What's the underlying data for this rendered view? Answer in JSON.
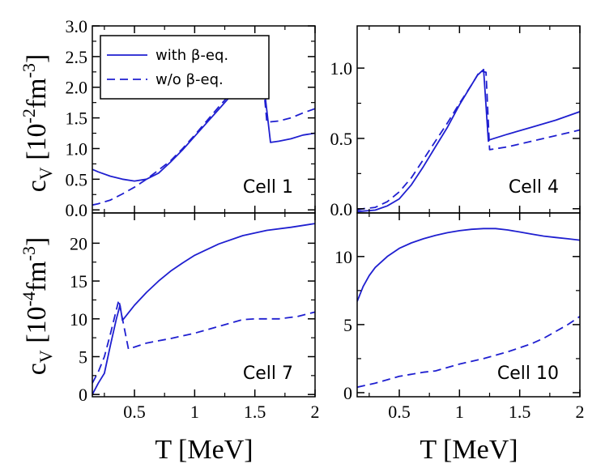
{
  "figure": {
    "x_axis_label": "T [MeV]",
    "y_axis_label_top": {
      "main": "c",
      "sub": "V",
      "open": " [10",
      "exp": "-2",
      "unit": "fm",
      "unit_exp": "-3",
      "close": "]"
    },
    "y_axis_label_bottom": {
      "main": "c",
      "sub": "V",
      "open": " [10",
      "exp": "-4",
      "unit": "fm",
      "unit_exp": "-3",
      "close": "]"
    }
  },
  "colors": {
    "line": "#1f1fd0",
    "axis": "#000000"
  },
  "legend": {
    "items": [
      {
        "label": "with β-eq.",
        "style": "solid"
      },
      {
        "label": "w/o β-eq.",
        "style": "dashed"
      }
    ]
  },
  "chart_data": [
    {
      "type": "line",
      "panel": "top-left",
      "title": "Cell 1",
      "xlabel": "T [MeV]",
      "ylabel": "cV [10^-2 fm^-3]",
      "xlim": [
        0.15,
        2.0
      ],
      "ylim": [
        -0.05,
        3.0
      ],
      "xticks": [
        0.5,
        1,
        1.5,
        2
      ],
      "xtick_labels": [
        "0.5",
        "1",
        "1.5",
        "2"
      ],
      "yticks": [
        0.0,
        0.5,
        1.0,
        1.5,
        2.0,
        2.5,
        3.0
      ],
      "ytick_labels": [
        "0.0",
        "0.5",
        "1.0",
        "1.5",
        "2.0",
        "2.5",
        "3.0"
      ],
      "series": [
        {
          "name": "with β-eq.",
          "style": "solid",
          "x": [
            0.15,
            0.2,
            0.3,
            0.4,
            0.5,
            0.6,
            0.7,
            0.8,
            0.9,
            1.0,
            1.1,
            1.2,
            1.3,
            1.4,
            1.5,
            1.55,
            1.63,
            1.7,
            1.8,
            1.9,
            2.0
          ],
          "values": [
            0.66,
            0.62,
            0.55,
            0.5,
            0.47,
            0.5,
            0.6,
            0.78,
            0.98,
            1.2,
            1.42,
            1.64,
            1.86,
            2.08,
            2.32,
            2.46,
            1.1,
            1.12,
            1.16,
            1.22,
            1.25
          ]
        },
        {
          "name": "w/o β-eq.",
          "style": "dashed",
          "x": [
            0.15,
            0.2,
            0.3,
            0.4,
            0.5,
            0.6,
            0.7,
            0.8,
            0.9,
            1.0,
            1.1,
            1.2,
            1.3,
            1.4,
            1.5,
            1.55,
            1.6,
            1.7,
            1.8,
            1.9,
            2.0
          ],
          "values": [
            0.08,
            0.1,
            0.16,
            0.26,
            0.37,
            0.5,
            0.65,
            0.8,
            1.0,
            1.22,
            1.45,
            1.68,
            1.9,
            2.12,
            2.36,
            2.5,
            1.43,
            1.45,
            1.5,
            1.58,
            1.65
          ]
        }
      ]
    },
    {
      "type": "line",
      "panel": "top-right",
      "title": "Cell 4",
      "xlabel": "T [MeV]",
      "ylabel": "",
      "xlim": [
        0.15,
        2.0
      ],
      "ylim": [
        -0.03,
        1.3
      ],
      "xticks": [
        0.5,
        1,
        1.5,
        2
      ],
      "xtick_labels": [
        "0.5",
        "1",
        "1.5",
        "2"
      ],
      "yticks": [
        0.0,
        0.5,
        1.0
      ],
      "ytick_labels": [
        "0.0",
        "0.5",
        "1.0"
      ],
      "series": [
        {
          "name": "with β-eq.",
          "style": "solid",
          "x": [
            0.15,
            0.3,
            0.4,
            0.5,
            0.6,
            0.7,
            0.8,
            0.9,
            1.0,
            1.1,
            1.15,
            1.2,
            1.24,
            1.25,
            1.4,
            1.6,
            1.8,
            2.0
          ],
          "values": [
            -0.02,
            -0.01,
            0.02,
            0.07,
            0.17,
            0.3,
            0.44,
            0.58,
            0.74,
            0.88,
            0.95,
            0.99,
            0.48,
            0.49,
            0.53,
            0.58,
            0.63,
            0.69
          ]
        },
        {
          "name": "w/o β-eq.",
          "style": "dashed",
          "x": [
            0.15,
            0.2,
            0.3,
            0.4,
            0.5,
            0.6,
            0.7,
            0.8,
            0.9,
            1.0,
            1.1,
            1.17,
            1.22,
            1.25,
            1.4,
            1.6,
            1.8,
            2.0
          ],
          "values": [
            -0.01,
            0.0,
            0.01,
            0.05,
            0.12,
            0.22,
            0.35,
            0.48,
            0.61,
            0.75,
            0.88,
            0.98,
            0.97,
            0.42,
            0.44,
            0.48,
            0.52,
            0.56
          ]
        }
      ]
    },
    {
      "type": "line",
      "panel": "bottom-left",
      "title": "Cell 7",
      "xlabel": "T [MeV]",
      "ylabel": "cV [10^-4 fm^-3]",
      "xlim": [
        0.15,
        2.0
      ],
      "ylim": [
        -0.3,
        24
      ],
      "xticks": [
        0.5,
        1,
        1.5,
        2
      ],
      "xtick_labels": [
        "0.5",
        "1",
        "1.5",
        "2"
      ],
      "yticks": [
        0,
        5,
        10,
        15,
        20
      ],
      "ytick_labels": [
        "0",
        "5",
        "10",
        "15",
        "20"
      ],
      "series": [
        {
          "name": "with β-eq.",
          "style": "solid",
          "x": [
            0.15,
            0.2,
            0.25,
            0.3,
            0.35,
            0.38,
            0.4,
            0.5,
            0.6,
            0.7,
            0.8,
            0.9,
            1.0,
            1.2,
            1.4,
            1.6,
            1.8,
            2.0
          ],
          "values": [
            0.0,
            1.5,
            2.8,
            6.5,
            10.0,
            11.8,
            9.8,
            11.8,
            13.5,
            15.0,
            16.3,
            17.4,
            18.4,
            19.9,
            21.0,
            21.7,
            22.1,
            22.6
          ]
        },
        {
          "name": "w/o β-eq.",
          "style": "dashed",
          "x": [
            0.15,
            0.2,
            0.25,
            0.3,
            0.37,
            0.4,
            0.45,
            0.6,
            0.8,
            1.0,
            1.2,
            1.4,
            1.5,
            1.7,
            1.85,
            2.0
          ],
          "values": [
            1.5,
            3.0,
            5.0,
            8.0,
            12.5,
            10.0,
            6.0,
            6.8,
            7.4,
            8.1,
            9.0,
            9.9,
            10.0,
            10.0,
            10.3,
            10.9
          ]
        }
      ]
    },
    {
      "type": "line",
      "panel": "bottom-right",
      "title": "Cell 10",
      "xlabel": "T [MeV]",
      "ylabel": "",
      "xlim": [
        0.15,
        2.0
      ],
      "ylim": [
        -0.3,
        13.2
      ],
      "xticks": [
        0.5,
        1,
        1.5,
        2
      ],
      "xtick_labels": [
        "0.5",
        "1",
        "1.5",
        "2"
      ],
      "yticks": [
        0,
        5,
        10
      ],
      "ytick_labels": [
        "0",
        "5",
        "10"
      ],
      "series": [
        {
          "name": "with β-eq.",
          "style": "solid",
          "x": [
            0.15,
            0.2,
            0.25,
            0.3,
            0.4,
            0.5,
            0.6,
            0.7,
            0.8,
            0.9,
            1.0,
            1.1,
            1.2,
            1.3,
            1.4,
            1.5,
            1.6,
            1.7,
            1.8,
            1.9,
            2.0
          ],
          "values": [
            6.7,
            7.8,
            8.6,
            9.2,
            10.0,
            10.6,
            11.0,
            11.3,
            11.55,
            11.75,
            11.9,
            12.0,
            12.05,
            12.05,
            11.95,
            11.8,
            11.65,
            11.5,
            11.4,
            11.3,
            11.2
          ]
        },
        {
          "name": "w/o β-eq.",
          "style": "dashed",
          "x": [
            0.15,
            0.3,
            0.5,
            0.7,
            0.8,
            1.0,
            1.2,
            1.4,
            1.5,
            1.6,
            1.7,
            1.8,
            1.9,
            2.0
          ],
          "values": [
            0.4,
            0.7,
            1.2,
            1.5,
            1.6,
            2.1,
            2.5,
            3.0,
            3.3,
            3.6,
            4.0,
            4.5,
            5.0,
            5.6
          ]
        }
      ]
    }
  ]
}
